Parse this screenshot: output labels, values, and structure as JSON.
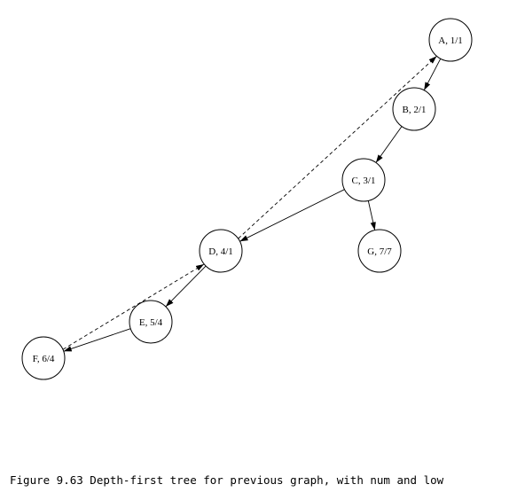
{
  "caption": "Figure 9.63 Depth-first tree for previous graph, with num and low",
  "nodes": {
    "A": "A, 1/1",
    "B": "B, 2/1",
    "C": "C, 3/1",
    "D": "D, 4/1",
    "E": "E, 5/4",
    "F": "F, 6/4",
    "G": "G, 7/7"
  },
  "tree_edges": [
    [
      "A",
      "B"
    ],
    [
      "B",
      "C"
    ],
    [
      "C",
      "D"
    ],
    [
      "C",
      "G"
    ],
    [
      "D",
      "E"
    ],
    [
      "E",
      "F"
    ]
  ],
  "back_edges": [
    [
      "D",
      "A"
    ],
    [
      "F",
      "D"
    ]
  ]
}
